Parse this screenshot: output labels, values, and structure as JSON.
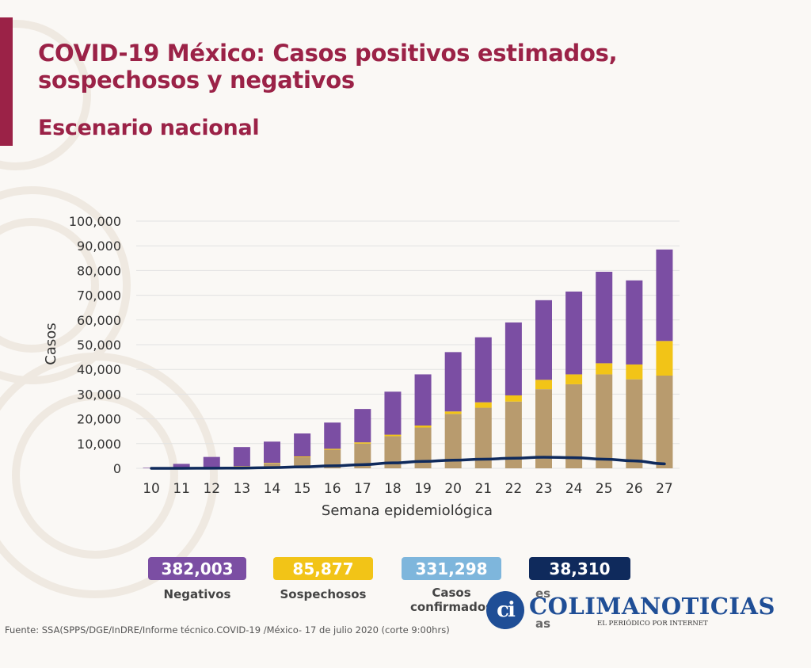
{
  "header": {
    "title_line1": "COVID-19 México: Casos positivos estimados,",
    "title_line2": "sospechosos y negativos",
    "subtitle": "Escenario nacional"
  },
  "colors": {
    "accent": "#9b2247",
    "negativos": "#7b4ea3",
    "sospechosos": "#f2c417",
    "confirmados": "#b89b6e",
    "defunciones": "#0f2a5c",
    "badge_confirmados": "#7eb6dc"
  },
  "chart_data": {
    "type": "bar",
    "stacked": true,
    "xlabel": "Semana epidemiológica",
    "ylabel": "Casos",
    "ylim": [
      0,
      100000
    ],
    "yticks": [
      0,
      10000,
      20000,
      30000,
      40000,
      50000,
      60000,
      70000,
      80000,
      90000,
      100000
    ],
    "ytick_labels": [
      "0",
      "10,000",
      "20,000",
      "30,000",
      "40,000",
      "50,000",
      "60,000",
      "70,000",
      "80,000",
      "90,000",
      "100,000"
    ],
    "grid": true,
    "categories": [
      "10",
      "11",
      "12",
      "13",
      "14",
      "15",
      "16",
      "17",
      "18",
      "19",
      "20",
      "21",
      "22",
      "23",
      "24",
      "25",
      "26",
      "27"
    ],
    "series": [
      {
        "key": "confirmados",
        "values": [
          50,
          150,
          400,
          800,
          2000,
          4500,
          7500,
          10000,
          13000,
          16500,
          22000,
          24500,
          27000,
          32000,
          34000,
          38000,
          36000,
          37500
        ]
      },
      {
        "key": "sospechosos",
        "values": [
          0,
          20,
          50,
          100,
          200,
          300,
          400,
          500,
          600,
          800,
          1000,
          2200,
          2500,
          3800,
          4000,
          4500,
          6000,
          14000
        ]
      },
      {
        "key": "negativos",
        "values": [
          200,
          1630,
          4150,
          7700,
          8600,
          9300,
          10600,
          13500,
          17400,
          20700,
          24000,
          26300,
          29500,
          32200,
          33500,
          37000,
          34000,
          37000
        ]
      }
    ],
    "line": {
      "key": "defunciones",
      "values": [
        0,
        20,
        50,
        100,
        300,
        600,
        1000,
        1500,
        2200,
        2800,
        3300,
        3700,
        4100,
        4500,
        4300,
        3700,
        3000,
        1800
      ]
    }
  },
  "summary": [
    {
      "key": "negativos",
      "value": "382,003",
      "label": "Negativos"
    },
    {
      "key": "sospechosos",
      "value": "85,877",
      "label": "Sospechosos"
    },
    {
      "key": "badge_confirmados",
      "value": "331,298",
      "label_line1": "Casos",
      "label_line2": "confirmados"
    },
    {
      "key": "defunciones",
      "value": "38,310",
      "label_line1": "es",
      "label_line2": "as"
    }
  ],
  "source": "Fuente: SSA(SPPS/DGE/InDRE/Informe técnico.COVID-19 /México- 17 de julio 2020 (corte 9:00hrs)",
  "watermark": {
    "name": "COLIMANOTICIAS",
    "tagline": "EL PERIÓDICO POR INTERNET",
    "mark": "ci"
  }
}
